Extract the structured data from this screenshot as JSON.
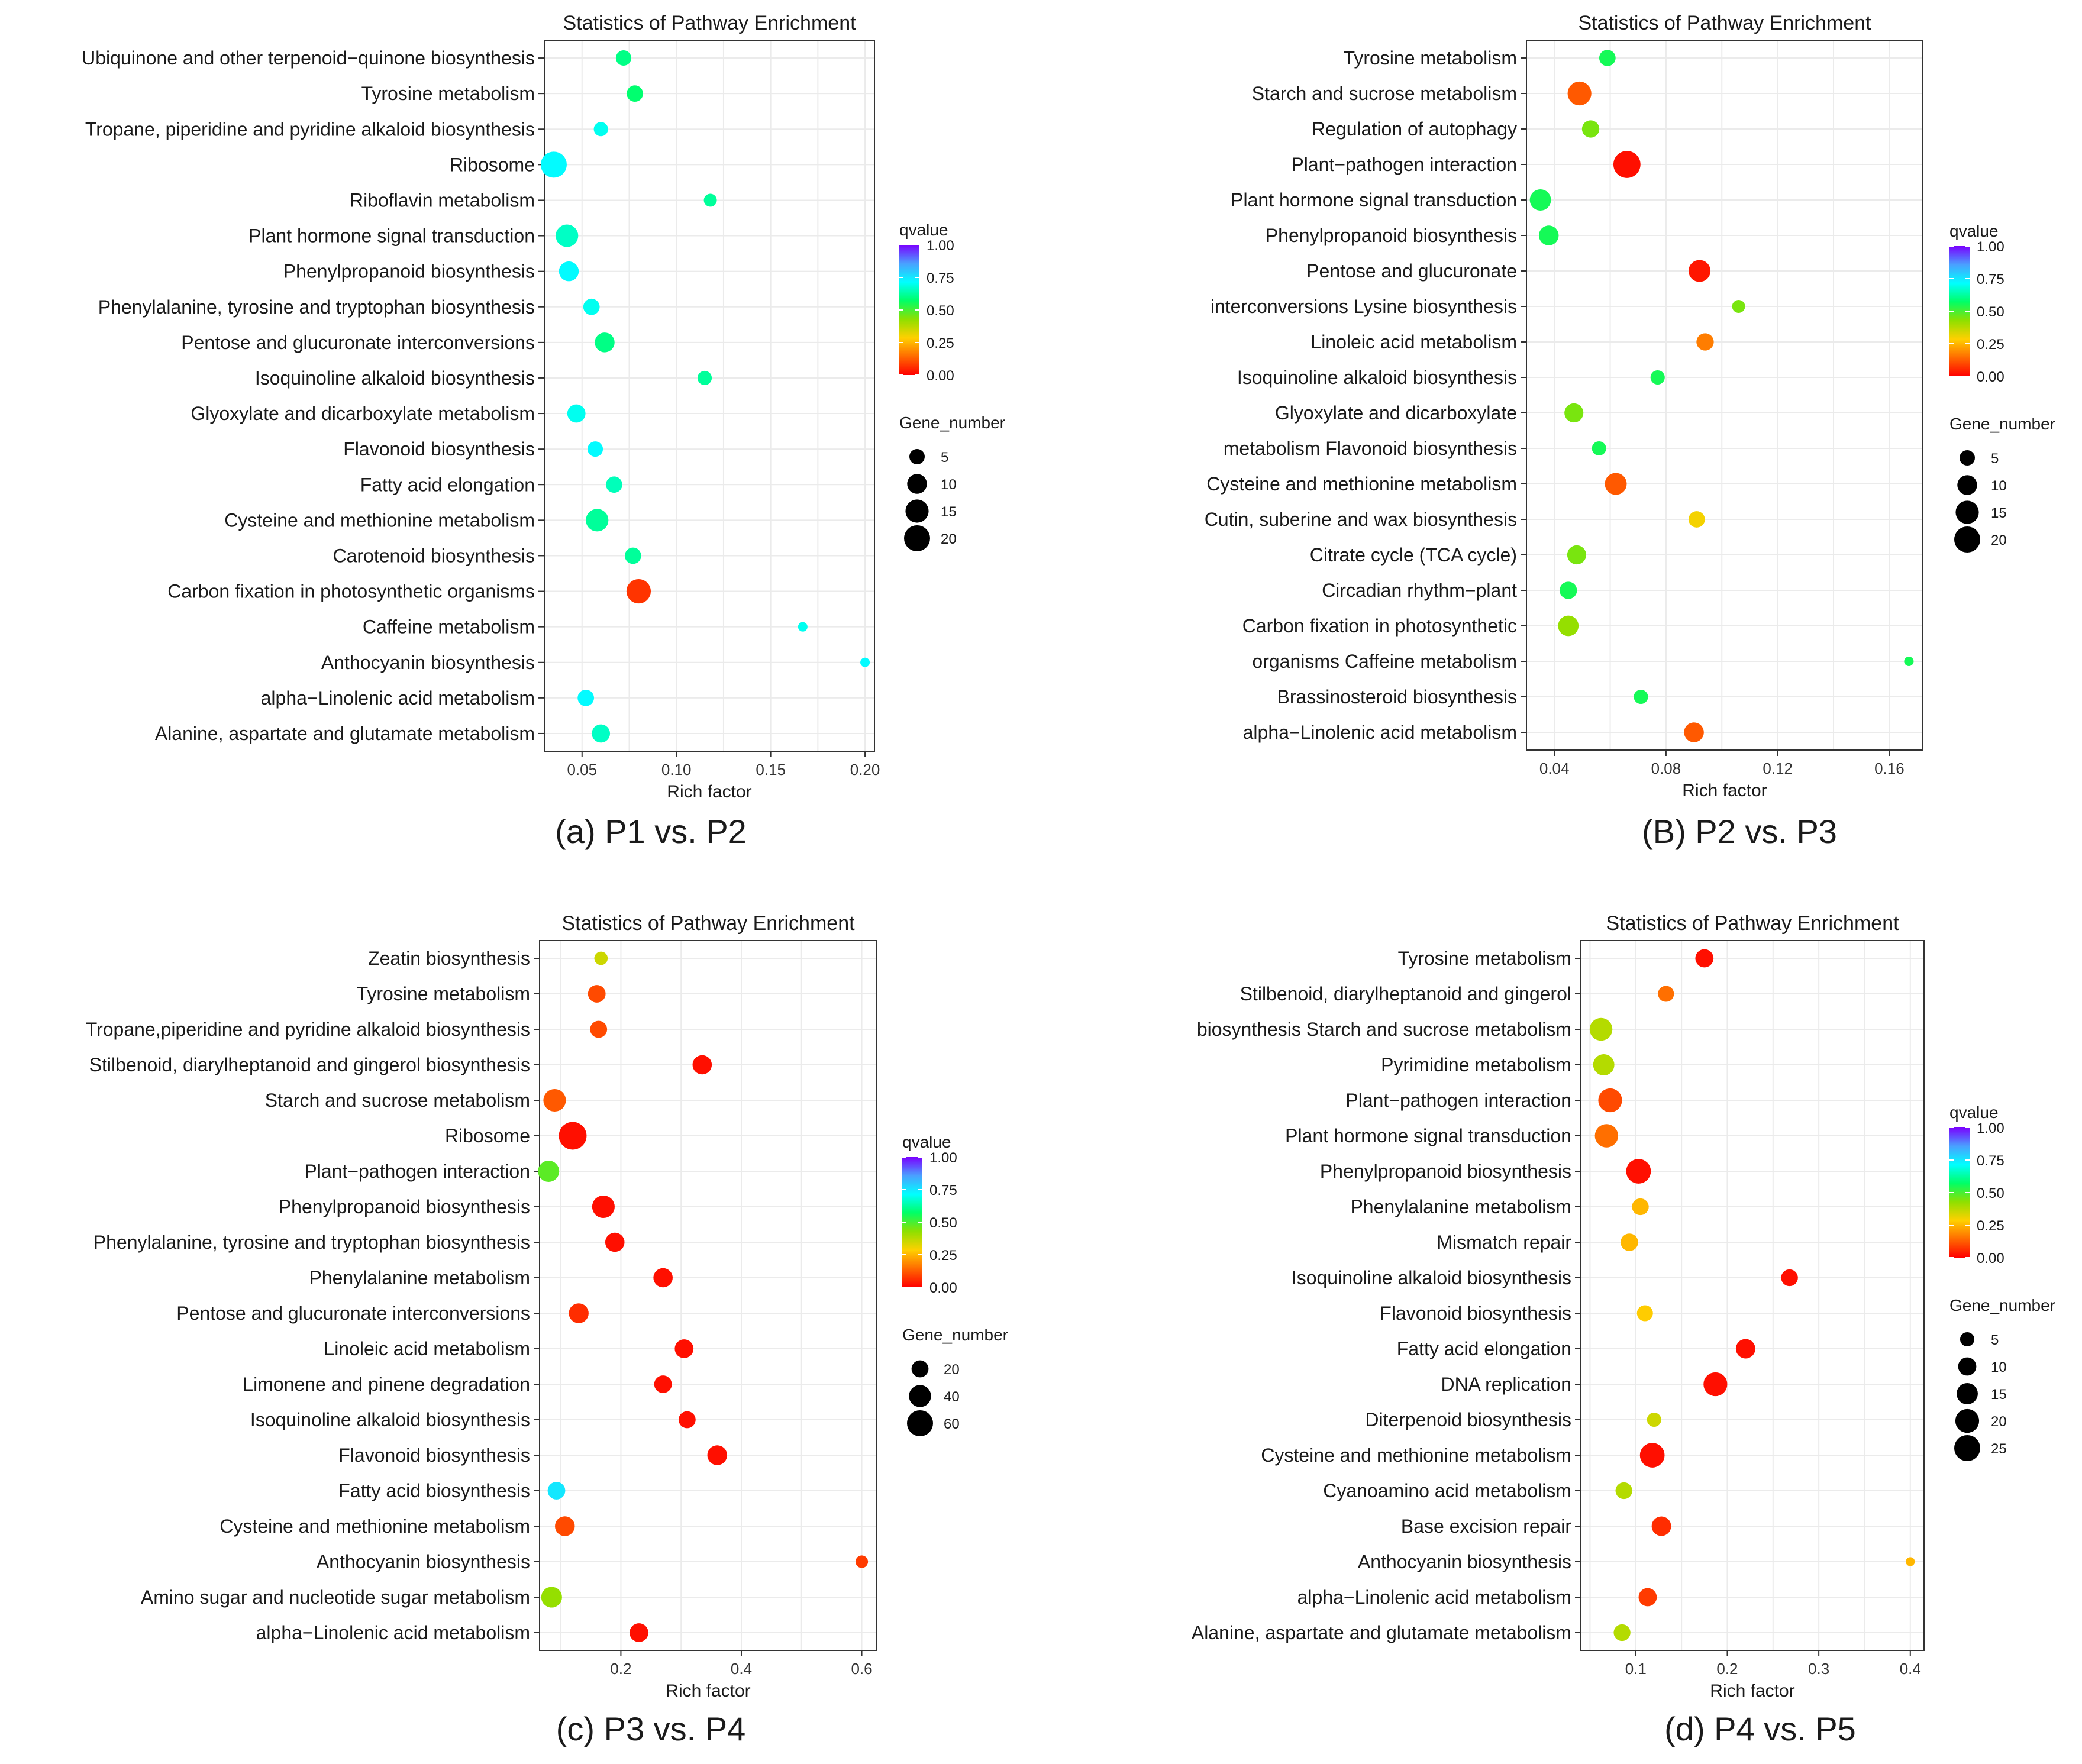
{
  "figure": {
    "panels": [
      {
        "caption": "(a) P1 vs. P2"
      },
      {
        "caption": "(B) P2  vs. P3"
      },
      {
        "caption": "(c) P3 vs. P4"
      },
      {
        "caption": "(d) P4 vs. P5"
      }
    ]
  },
  "colors": {
    "qvalue_gradient": [
      "#ff0000",
      "#ff6a00",
      "#ffd000",
      "#8ee000",
      "#00ff66",
      "#00ffff",
      "#4aa0ff",
      "#7a00ff"
    ],
    "panel_bg": "#ffffff",
    "grid": "#ebebeb",
    "text": "#1a1a1a"
  },
  "chart_data": [
    {
      "type": "scatter",
      "title": "Statistics of Pathway Enrichment",
      "xlabel": "Rich factor",
      "ylabel": "",
      "xlim": [
        0.03,
        0.205
      ],
      "xticks": [
        0.05,
        0.1,
        0.15,
        0.2
      ],
      "xtick_labels": [
        "0.05",
        "0.10",
        "0.15",
        "0.20"
      ],
      "categories": [
        "Ubiquinone and other terpenoid−quinone biosynthesis",
        "Tyrosine metabolism",
        "Tropane, piperidine and pyridine alkaloid biosynthesis",
        "Ribosome",
        "Riboflavin metabolism",
        "Plant hormone signal transduction",
        "Phenylpropanoid biosynthesis",
        "Phenylalanine, tyrosine and tryptophan biosynthesis",
        "Pentose and glucuronate interconversions",
        "Isoquinoline alkaloid biosynthesis",
        "Glyoxylate and dicarboxylate metabolism",
        "Flavonoid biosynthesis",
        "Fatty acid elongation",
        "Cysteine and methionine metabolism",
        "Carotenoid biosynthesis",
        "Carbon fixation in photosynthetic organisms",
        "Caffeine metabolism",
        "Anthocyanin biosynthesis",
        "alpha−Linolenic acid metabolism",
        "Alanine, aspartate and glutamate metabolism"
      ],
      "rich_factor": [
        0.072,
        0.078,
        0.06,
        0.035,
        0.118,
        0.042,
        0.043,
        0.055,
        0.062,
        0.115,
        0.047,
        0.057,
        0.067,
        0.058,
        0.077,
        0.08,
        0.167,
        0.2,
        0.052,
        0.06
      ],
      "qvalue": [
        0.6,
        0.58,
        0.7,
        0.72,
        0.62,
        0.66,
        0.72,
        0.7,
        0.6,
        0.62,
        0.7,
        0.72,
        0.65,
        0.62,
        0.62,
        0.07,
        0.7,
        0.72,
        0.72,
        0.66
      ],
      "gene_number": [
        5,
        6,
        4,
        20,
        3,
        14,
        10,
        6,
        10,
        4,
        8,
        5,
        6,
        14,
        6,
        17,
        1,
        1,
        6,
        8
      ],
      "legend": {
        "color_title": "qvalue",
        "color_ticks": [
          "1.00",
          "0.75",
          "0.50",
          "0.25",
          "0.00"
        ],
        "size_title": "Gene_number",
        "size_values": [
          5,
          10,
          15,
          20
        ],
        "size_labels": [
          "5",
          "10",
          "15",
          "20"
        ]
      }
    },
    {
      "type": "scatter",
      "title": "Statistics of Pathway Enrichment",
      "xlabel": "Rich factor",
      "ylabel": "",
      "xlim": [
        0.03,
        0.172
      ],
      "xticks": [
        0.04,
        0.08,
        0.12,
        0.16
      ],
      "xtick_labels": [
        "0.04",
        "0.08",
        "0.12",
        "0.16"
      ],
      "categories": [
        "Tyrosine metabolism",
        "Starch and sucrose metabolism",
        "Regulation of autophagy",
        "Plant−pathogen interaction",
        "Plant hormone signal transduction",
        "Phenylpropanoid biosynthesis",
        "Pentose and glucuronate",
        "interconversions Lysine biosynthesis",
        "Linoleic acid metabolism",
        "Isoquinoline alkaloid biosynthesis",
        "Glyoxylate and dicarboxylate",
        "metabolism Flavonoid biosynthesis",
        "Cysteine and methionine metabolism",
        "Cutin, suberine and wax biosynthesis",
        "Citrate cycle (TCA cycle)",
        "Circadian rhythm−plant",
        "Carbon fixation in photosynthetic",
        "organisms Caffeine metabolism",
        "Brassinosteroid biosynthesis",
        "alpha−Linolenic acid metabolism"
      ],
      "rich_factor": [
        0.059,
        0.049,
        0.053,
        0.066,
        0.035,
        0.038,
        0.092,
        0.106,
        0.094,
        0.077,
        0.047,
        0.056,
        0.062,
        0.091,
        0.048,
        0.045,
        0.045,
        0.167,
        0.071,
        0.09
      ],
      "qvalue": [
        0.55,
        0.12,
        0.45,
        0.02,
        0.55,
        0.55,
        0.03,
        0.45,
        0.17,
        0.55,
        0.45,
        0.55,
        0.12,
        0.3,
        0.45,
        0.55,
        0.42,
        0.55,
        0.55,
        0.12
      ],
      "gene_number": [
        6,
        16,
        7,
        22,
        12,
        10,
        13,
        3,
        7,
        4,
        9,
        4,
        13,
        6,
        9,
        7,
        11,
        1,
        4,
        10
      ],
      "legend": {
        "color_title": "qvalue",
        "color_ticks": [
          "1.00",
          "0.75",
          "0.50",
          "0.25",
          "0.00"
        ],
        "size_title": "Gene_number",
        "size_values": [
          5,
          10,
          15,
          20
        ],
        "size_labels": [
          "5",
          "10",
          "15",
          "20"
        ]
      }
    },
    {
      "type": "scatter",
      "title": "Statistics of Pathway Enrichment",
      "xlabel": "Rich factor",
      "ylabel": "",
      "xlim": [
        0.065,
        0.625
      ],
      "xticks": [
        0.2,
        0.4,
        0.6
      ],
      "xtick_labels": [
        "0.2",
        "0.4",
        "0.6"
      ],
      "categories": [
        "Zeatin biosynthesis",
        "Tyrosine metabolism",
        "Tropane,piperidine and pyridine alkaloid biosynthesis",
        "Stilbenoid, diarylheptanoid and gingerol biosynthesis",
        "Starch and sucrose metabolism",
        "Ribosome",
        "Plant−pathogen interaction",
        "Phenylpropanoid biosynthesis",
        "Phenylalanine, tyrosine and tryptophan biosynthesis",
        "Phenylalanine metabolism",
        "Pentose and glucuronate interconversions",
        "Linoleic acid metabolism",
        "Limonene and pinene degradation",
        "Isoquinoline alkaloid biosynthesis",
        "Flavonoid biosynthesis",
        "Fatty acid biosynthesis",
        "Cysteine and methionine metabolism",
        "Anthocyanin biosynthesis",
        "Amino sugar and nucleotide sugar metabolism",
        "alpha−Linolenic acid metabolism"
      ],
      "rich_factor": [
        0.167,
        0.16,
        0.163,
        0.335,
        0.09,
        0.12,
        0.08,
        0.171,
        0.19,
        0.27,
        0.13,
        0.305,
        0.27,
        0.31,
        0.36,
        0.093,
        0.107,
        0.6,
        0.085,
        0.23
      ],
      "qvalue": [
        0.35,
        0.1,
        0.1,
        0.02,
        0.12,
        0.02,
        0.48,
        0.02,
        0.02,
        0.02,
        0.06,
        0.02,
        0.02,
        0.02,
        0.02,
        0.75,
        0.1,
        0.08,
        0.42,
        0.02
      ],
      "gene_number": [
        10,
        22,
        20,
        28,
        42,
        70,
        36,
        42,
        28,
        28,
        30,
        26,
        22,
        20,
        30,
        22,
        30,
        8,
        34,
        26
      ],
      "legend": {
        "color_title": "qvalue",
        "color_ticks": [
          "1.00",
          "0.75",
          "0.50",
          "0.25",
          "0.00"
        ],
        "size_title": "Gene_number",
        "size_values": [
          20,
          40,
          60
        ],
        "size_labels": [
          "20",
          "40",
          "60"
        ]
      }
    },
    {
      "type": "scatter",
      "title": "Statistics of Pathway Enrichment",
      "xlabel": "Rich factor",
      "ylabel": "",
      "xlim": [
        0.04,
        0.415
      ],
      "xticks": [
        0.1,
        0.2,
        0.3,
        0.4
      ],
      "xtick_labels": [
        "0.1",
        "0.2",
        "0.3",
        "0.4"
      ],
      "categories": [
        "Tyrosine metabolism",
        "Stilbenoid, diarylheptanoid and gingerol",
        "biosynthesis Starch and sucrose metabolism",
        "Pyrimidine metabolism",
        "Plant−pathogen interaction",
        "Plant hormone signal transduction",
        "Phenylpropanoid biosynthesis",
        "Phenylalanine metabolism",
        "Mismatch repair",
        "Isoquinoline alkaloid biosynthesis",
        "Flavonoid biosynthesis",
        "Fatty acid elongation",
        "DNA replication",
        "Diterpenoid biosynthesis",
        "Cysteine and methionine metabolism",
        "Cyanoamino acid metabolism",
        "Base excision repair",
        "Anthocyanin biosynthesis",
        "alpha−Linolenic acid metabolism",
        "Alanine, aspartate and glutamate metabolism"
      ],
      "rich_factor": [
        0.175,
        0.133,
        0.062,
        0.065,
        0.072,
        0.068,
        0.103,
        0.105,
        0.093,
        0.268,
        0.11,
        0.22,
        0.187,
        0.12,
        0.118,
        0.087,
        0.128,
        0.4,
        0.113,
        0.085
      ],
      "qvalue": [
        0.02,
        0.15,
        0.38,
        0.38,
        0.1,
        0.15,
        0.02,
        0.25,
        0.25,
        0.02,
        0.28,
        0.02,
        0.02,
        0.35,
        0.02,
        0.38,
        0.06,
        0.25,
        0.08,
        0.38
      ],
      "gene_number": [
        10,
        7,
        18,
        15,
        20,
        19,
        22,
        8,
        9,
        8,
        7,
        12,
        20,
        5,
        22,
        8,
        12,
        1,
        10,
        8
      ],
      "legend": {
        "color_title": "qvalue",
        "color_ticks": [
          "1.00",
          "0.75",
          "0.50",
          "0.25",
          "0.00"
        ],
        "size_title": "Gene_number",
        "size_values": [
          5,
          10,
          15,
          20,
          25
        ],
        "size_labels": [
          "5",
          "10",
          "15",
          "20",
          "25"
        ]
      }
    }
  ]
}
